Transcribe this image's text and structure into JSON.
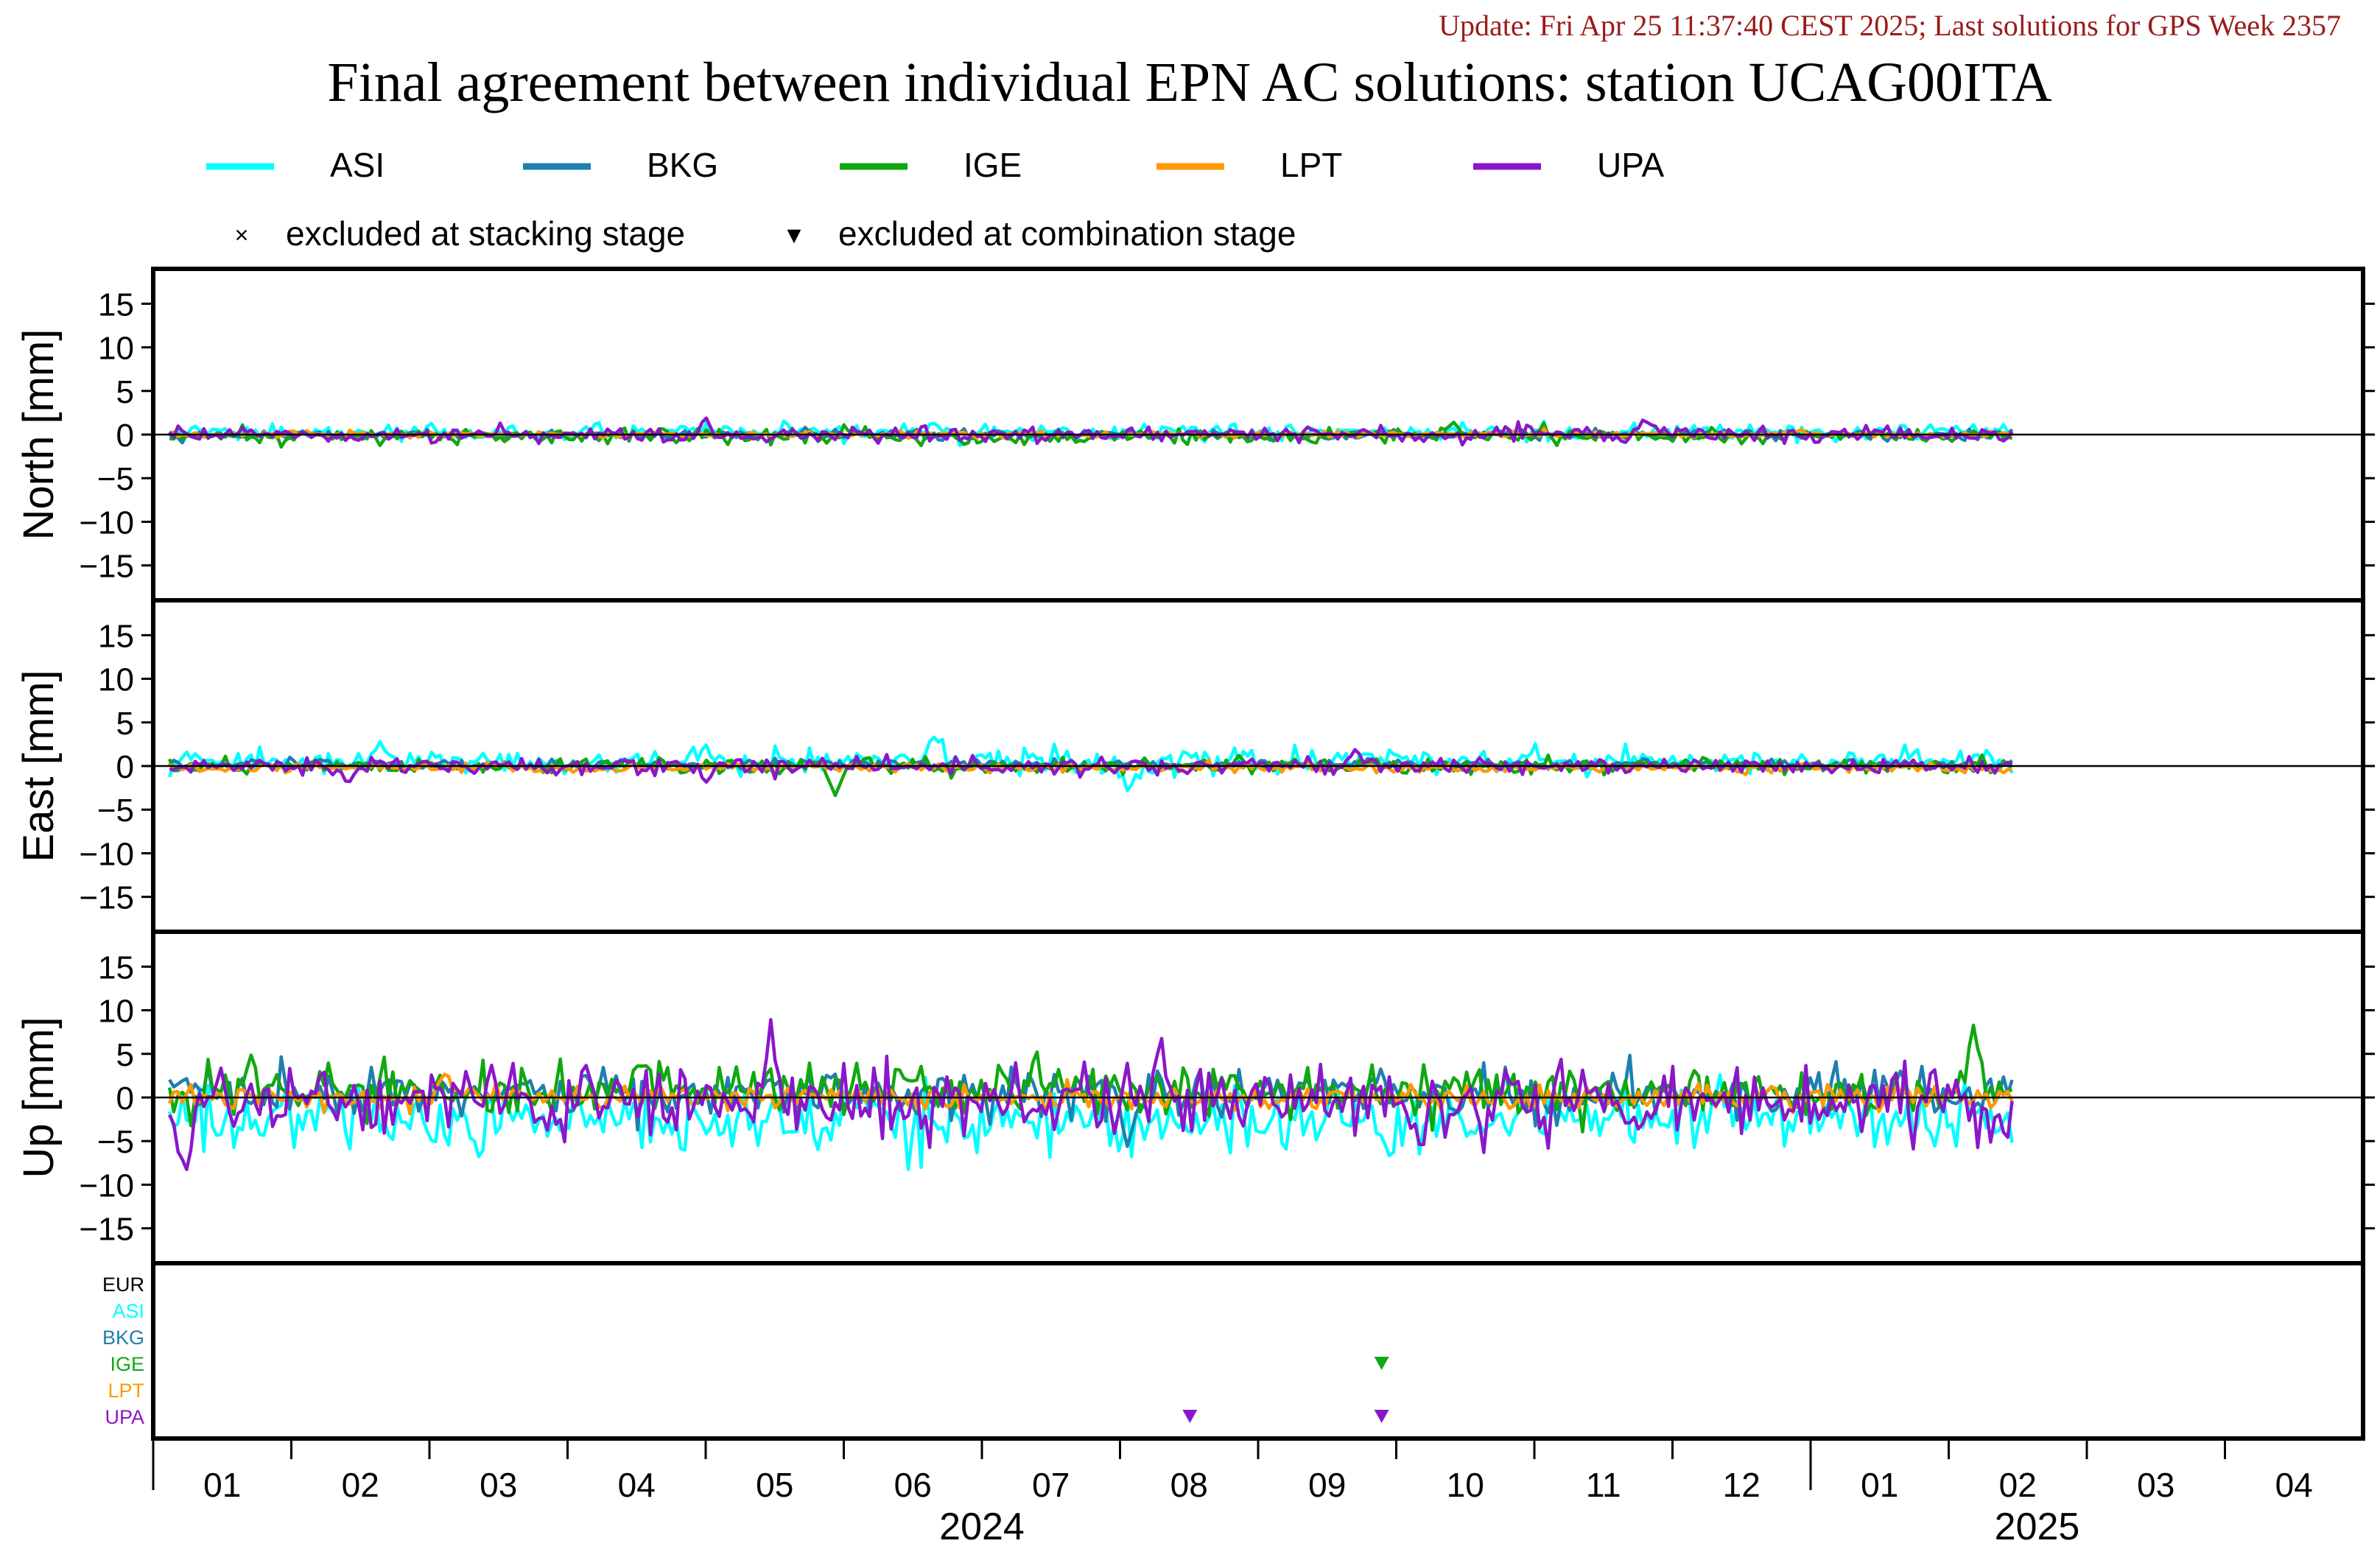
{
  "header": {
    "update_text": "Update: Fri Apr 25 11:37:40 CEST 2025; Last solutions for GPS Week 2357",
    "title": "Final agreement between individual EPN AC solutions: station UCAG00ITA"
  },
  "legend": {
    "series": [
      {
        "name": "ASI",
        "color": "#00ffff"
      },
      {
        "name": "BKG",
        "color": "#1f7fb0"
      },
      {
        "name": "IGE",
        "color": "#10a810"
      },
      {
        "name": "LPT",
        "color": "#ff9900"
      },
      {
        "name": "UPA",
        "color": "#8a17c9"
      }
    ],
    "markers": [
      {
        "symbol": "×",
        "label": "excluded at stacking stage"
      },
      {
        "symbol": "▼",
        "label": "excluded at combination stage"
      }
    ]
  },
  "chart_data": {
    "type": "line",
    "x_unit": "week",
    "x_range": [
      0,
      68
    ],
    "year_months": [
      {
        "year": "2024",
        "months": [
          "01",
          "02",
          "03",
          "04",
          "05",
          "06",
          "07",
          "08",
          "09",
          "10",
          "11",
          "12"
        ]
      },
      {
        "year": "2025",
        "months": [
          "01",
          "02",
          "03",
          "04"
        ]
      }
    ],
    "y_ticks": [
      15,
      10,
      5,
      0,
      -5,
      -10,
      -15
    ],
    "ylim": [
      -19,
      19
    ],
    "panels": [
      {
        "ylabel": "North [mm]",
        "series": [
          {
            "name": "ASI",
            "noise": 0.5,
            "bias": 0.2,
            "spikes": [
              [
                24,
                1.3
              ]
            ]
          },
          {
            "name": "BKG",
            "noise": 0.3,
            "bias": 0.0,
            "spikes": []
          },
          {
            "name": "IGE",
            "noise": 0.5,
            "bias": -0.2,
            "spikes": [
              [
                40,
                1.5
              ]
            ]
          },
          {
            "name": "LPT",
            "noise": 0.2,
            "bias": 0.0,
            "spikes": []
          },
          {
            "name": "UPA",
            "noise": 0.5,
            "bias": 0.0,
            "spikes": [
              [
                17,
                2.0
              ],
              [
                46,
                1.5
              ]
            ]
          }
        ]
      },
      {
        "ylabel": "East [mm]",
        "series": [
          {
            "name": "ASI",
            "noise": 0.8,
            "bias": 0.5,
            "spikes": [
              [
                7,
                3.0
              ],
              [
                17,
                2.5
              ],
              [
                24,
                3.5
              ],
              [
                30,
                -3.0
              ]
            ]
          },
          {
            "name": "BKG",
            "noise": 0.3,
            "bias": 0.2,
            "spikes": []
          },
          {
            "name": "IGE",
            "noise": 0.5,
            "bias": 0.0,
            "spikes": [
              [
                21,
                -3.5
              ]
            ]
          },
          {
            "name": "LPT",
            "noise": 0.3,
            "bias": -0.2,
            "spikes": []
          },
          {
            "name": "UPA",
            "noise": 0.5,
            "bias": 0.0,
            "spikes": [
              [
                6,
                -2.0
              ],
              [
                17,
                -2.0
              ],
              [
                37,
                2.0
              ]
            ]
          }
        ]
      },
      {
        "ylabel": "Up [mm]",
        "series": [
          {
            "name": "ASI",
            "noise": 2.0,
            "bias": -2.5,
            "spikes": [
              [
                10,
                -7.0
              ],
              [
                38,
                -7.0
              ]
            ]
          },
          {
            "name": "BKG",
            "noise": 1.4,
            "bias": 0.5,
            "spikes": [
              [
                30,
                -6.0
              ]
            ]
          },
          {
            "name": "IGE",
            "noise": 1.5,
            "bias": 0.8,
            "spikes": [
              [
                3,
                5.0
              ],
              [
                15,
                4.0
              ],
              [
                56,
                8.5
              ]
            ]
          },
          {
            "name": "LPT",
            "noise": 0.8,
            "bias": 0.0,
            "spikes": [
              [
                9,
                3.0
              ]
            ]
          },
          {
            "name": "UPA",
            "noise": 2.2,
            "bias": -0.5,
            "spikes": [
              [
                1,
                -9.0
              ],
              [
                19,
                9.0
              ],
              [
                31,
                7.0
              ],
              [
                39,
                -6.0
              ],
              [
                57,
                -5.0
              ]
            ]
          }
        ]
      }
    ],
    "exclusion_panel": {
      "rows": [
        {
          "name": "EUR",
          "color": "#000000"
        },
        {
          "name": "ASI",
          "color": "#00ffff"
        },
        {
          "name": "BKG",
          "color": "#1f7fb0"
        },
        {
          "name": "IGE",
          "color": "#10a810"
        },
        {
          "name": "LPT",
          "color": "#ff9900"
        },
        {
          "name": "UPA",
          "color": "#8a17c9"
        }
      ],
      "markers": [
        {
          "row": "IGE",
          "x": 37.8,
          "symbol": "▼"
        },
        {
          "row": "UPA",
          "x": 31.9,
          "symbol": "▼"
        },
        {
          "row": "UPA",
          "x": 37.8,
          "symbol": "▼"
        }
      ]
    },
    "grid": false,
    "legend_position": "top"
  }
}
